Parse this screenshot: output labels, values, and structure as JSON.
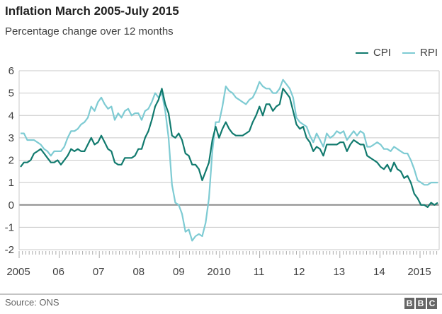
{
  "chart_data": {
    "type": "line",
    "title": "Inflation March 2005-July 2015",
    "subtitle": "Percentage change over 12 months",
    "start": "2005-03",
    "end": "2015-07",
    "frequency": "monthly",
    "ylim": [
      -2,
      6
    ],
    "yticks": [
      6,
      5,
      4,
      3,
      2,
      1,
      0,
      -1,
      -2
    ],
    "xtick_labels": [
      "2005",
      "06",
      "07",
      "08",
      "09",
      "2010",
      "11",
      "12",
      "13",
      "14",
      "2015"
    ],
    "grid": true,
    "legend_position": "top-right",
    "series": [
      {
        "name": "CPI",
        "color": "#117a6e",
        "values": [
          1.7,
          1.9,
          1.9,
          2.0,
          2.3,
          2.4,
          2.5,
          2.3,
          2.1,
          1.9,
          1.9,
          2.0,
          1.8,
          2.0,
          2.2,
          2.5,
          2.4,
          2.5,
          2.4,
          2.4,
          2.7,
          3.0,
          2.7,
          2.8,
          3.1,
          2.8,
          2.5,
          2.4,
          1.9,
          1.8,
          1.8,
          2.1,
          2.1,
          2.1,
          2.2,
          2.5,
          2.5,
          3.0,
          3.3,
          3.8,
          4.4,
          4.7,
          5.2,
          4.5,
          4.1,
          3.1,
          3.0,
          3.2,
          2.9,
          2.3,
          2.2,
          1.8,
          1.8,
          1.6,
          1.1,
          1.5,
          1.9,
          2.9,
          3.5,
          3.0,
          3.4,
          3.7,
          3.4,
          3.2,
          3.1,
          3.1,
          3.1,
          3.2,
          3.3,
          3.7,
          4.0,
          4.4,
          4.0,
          4.5,
          4.5,
          4.2,
          4.4,
          4.5,
          5.2,
          5.0,
          4.8,
          4.2,
          3.6,
          3.4,
          3.5,
          3.0,
          2.8,
          2.4,
          2.6,
          2.5,
          2.2,
          2.7,
          2.7,
          2.7,
          2.7,
          2.8,
          2.8,
          2.4,
          2.7,
          2.9,
          2.8,
          2.7,
          2.7,
          2.2,
          2.1,
          2.0,
          1.9,
          1.7,
          1.6,
          1.8,
          1.5,
          1.9,
          1.6,
          1.5,
          1.2,
          1.3,
          1.0,
          0.5,
          0.3,
          0.0,
          0.0,
          -0.1,
          0.1,
          0.0,
          0.1
        ]
      },
      {
        "name": "RPI",
        "color": "#7ecbd3",
        "values": [
          3.2,
          3.2,
          2.9,
          2.9,
          2.9,
          2.8,
          2.7,
          2.5,
          2.4,
          2.2,
          2.4,
          2.4,
          2.4,
          2.6,
          3.0,
          3.3,
          3.3,
          3.4,
          3.6,
          3.7,
          3.9,
          4.4,
          4.2,
          4.6,
          4.8,
          4.5,
          4.3,
          4.4,
          3.8,
          4.1,
          3.9,
          4.2,
          4.3,
          4.0,
          4.1,
          4.1,
          3.8,
          4.2,
          4.3,
          4.6,
          5.0,
          4.8,
          5.0,
          4.2,
          3.0,
          0.9,
          0.1,
          0.0,
          -0.4,
          -1.2,
          -1.1,
          -1.6,
          -1.4,
          -1.3,
          -1.4,
          -0.8,
          0.3,
          2.4,
          3.7,
          3.7,
          4.4,
          5.3,
          5.1,
          5.0,
          4.8,
          4.7,
          4.6,
          4.5,
          4.7,
          4.8,
          5.1,
          5.5,
          5.3,
          5.2,
          5.2,
          5.0,
          5.0,
          5.2,
          5.6,
          5.4,
          5.2,
          4.8,
          3.9,
          3.7,
          3.6,
          3.5,
          3.1,
          2.8,
          3.2,
          2.9,
          2.6,
          3.2,
          3.0,
          3.1,
          3.3,
          3.2,
          3.3,
          2.9,
          3.1,
          3.3,
          3.1,
          3.3,
          3.2,
          2.6,
          2.6,
          2.7,
          2.8,
          2.7,
          2.5,
          2.5,
          2.4,
          2.6,
          2.5,
          2.4,
          2.3,
          2.3,
          2.0,
          1.6,
          1.1,
          1.0,
          0.9,
          0.9,
          1.0,
          1.0,
          1.0
        ]
      }
    ]
  },
  "footer": {
    "source": "Source: ONS",
    "logo": [
      "B",
      "B",
      "C"
    ]
  }
}
